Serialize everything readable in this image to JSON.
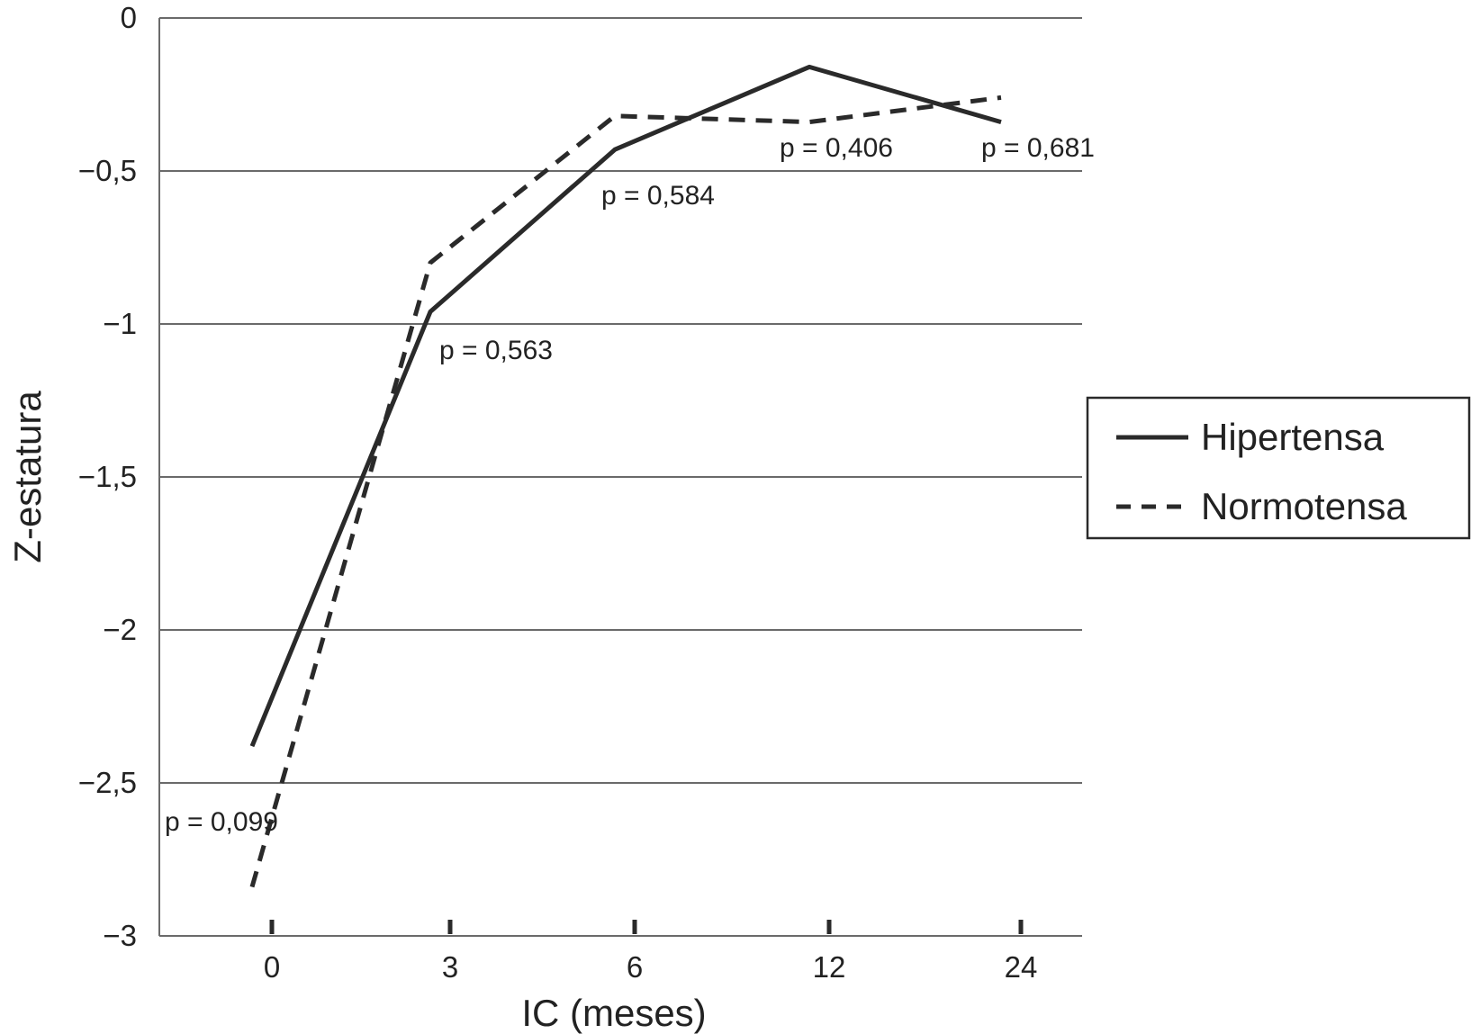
{
  "chart_data": {
    "type": "line",
    "xlabel": "IC (meses)",
    "ylabel": "Z-estatura",
    "categories": [
      "0",
      "3",
      "6",
      "12",
      "24"
    ],
    "ylim": [
      -3,
      0
    ],
    "yticks": [
      "0",
      "−0,5",
      "−1",
      "−1,5",
      "−2",
      "−2,5",
      "−3"
    ],
    "ytick_values": [
      0,
      -0.5,
      -1,
      -1.5,
      -2,
      -2.5,
      -3
    ],
    "grid": true,
    "legend_position": "right",
    "series": [
      {
        "name": "Hipertensa",
        "style": "solid",
        "values": [
          -2.38,
          -0.96,
          -0.43,
          -0.16,
          -0.34
        ]
      },
      {
        "name": "Normotensa",
        "style": "dashed",
        "values": [
          -2.84,
          -0.8,
          -0.32,
          -0.34,
          -0.26
        ]
      }
    ],
    "annotations": [
      "p = 0,099",
      "p = 0,563",
      "p = 0,584",
      "p = 0,406",
      "p = 0,681"
    ]
  },
  "colors": {
    "line": "#2a2a2a",
    "grid": "#6a6a6a",
    "text": "#222222"
  }
}
